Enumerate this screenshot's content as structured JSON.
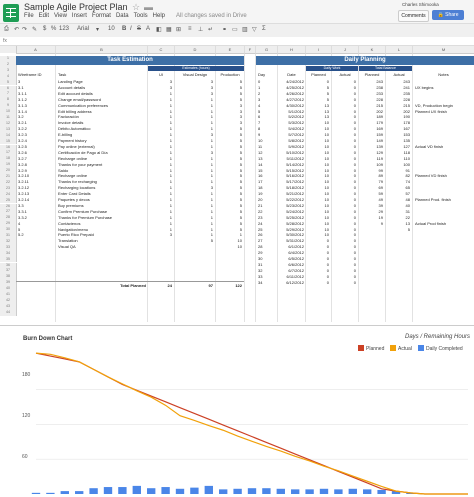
{
  "app": {
    "doc_title": "Sample Agile Project Plan",
    "menus": [
      "File",
      "Edit",
      "View",
      "Insert",
      "Format",
      "Data",
      "Tools",
      "Help"
    ],
    "save_status": "All changes saved in Drive",
    "user": "Charles Shimooka",
    "comments_label": "Comments",
    "share_label": "Share"
  },
  "toolbar": {
    "currency": "$",
    "percent": "%",
    "number_format": "123",
    "font": "Arial",
    "font_size": "10"
  },
  "columns": [
    "A",
    "B",
    "C",
    "D",
    "E",
    "F",
    "G",
    "H",
    "I",
    "J",
    "K",
    "L",
    "M"
  ],
  "task_estimation": {
    "title": "Task Estimation",
    "estimates_label": "Estimates (hours)",
    "headers": [
      "Wireframe ID",
      "Task",
      "UI",
      "Visual Design",
      "Production"
    ],
    "rows": [
      [
        "3",
        "Landing Page",
        "3",
        "3",
        "5"
      ],
      [
        "3.1",
        "Account details",
        "3",
        "3",
        "5"
      ],
      [
        "3.1.1",
        "Edit account details",
        "1",
        "3",
        "5"
      ],
      [
        "3.1.2",
        "Change email/password",
        "1",
        "1",
        "5"
      ],
      [
        "3.1.3",
        "Communication preferences",
        "1",
        "1",
        "3"
      ],
      [
        "3.1.4",
        "Edit billing address",
        "1",
        "1",
        "3"
      ],
      [
        "3.2",
        "Facturación",
        "1",
        "1",
        "3"
      ],
      [
        "3.2.1",
        "Invoice details",
        "1",
        "1",
        "3"
      ],
      [
        "3.2.2",
        "Débito Automático",
        "1",
        "1",
        "5"
      ],
      [
        "3.2.3",
        "E-billing",
        "1",
        "3",
        "5"
      ],
      [
        "3.2.4",
        "Payment history",
        "1",
        "1",
        "5"
      ],
      [
        "3.2.5",
        "Pay online (external)",
        "1",
        "1",
        "5"
      ],
      [
        "3.2.6",
        "Certificación de Pago al Día",
        "1",
        "3",
        "5"
      ],
      [
        "3.2.7",
        "Recharge online",
        "1",
        "1",
        "5"
      ],
      [
        "3.2.8",
        "Thanks for your payment",
        "1",
        "1",
        "5"
      ],
      [
        "3.2.9",
        "Saldo",
        "1",
        "1",
        "5"
      ],
      [
        "3.2.10",
        "Recharge online",
        "1",
        "1",
        "5"
      ],
      [
        "3.2.11",
        "Thanks for recharging",
        "1",
        "1",
        "5"
      ],
      [
        "3.2.12",
        "Recharging locations",
        "1",
        "3",
        "5"
      ],
      [
        "3.2.13",
        "Enter Card Details",
        "1",
        "1",
        "5"
      ],
      [
        "3.2.14",
        "Paquetes y decos",
        "1",
        "1",
        "5"
      ],
      [
        "3.3",
        "Buy premiums",
        "1",
        "1",
        "5"
      ],
      [
        "3.3.1",
        "Confirm Premium Purchase",
        "1",
        "1",
        "5"
      ],
      [
        "3.3.2",
        "Thanks for Premium Purchase",
        "1",
        "1",
        "5"
      ],
      [
        "4",
        "Contáctenos",
        "1",
        "1",
        "5"
      ],
      [
        "5",
        "Navigation/menu",
        "1",
        "1",
        "5"
      ],
      [
        "5.2",
        "Puerto Rico Prepaid",
        "3",
        "1",
        "1"
      ],
      [
        "",
        "Translation",
        "",
        "5",
        "10"
      ],
      [
        "",
        "Visual QA",
        "",
        "",
        "10"
      ]
    ],
    "total_label": "Total Planned",
    "totals": [
      "24",
      "97",
      "122"
    ]
  },
  "daily_planning": {
    "title": "Daily Planning",
    "daily_work_label": "Daily Work",
    "total_balance_label": "Total Balance",
    "headers": [
      "Day",
      "Date",
      "Planned",
      "Actual",
      "Planned",
      "Actual",
      "Notes"
    ],
    "rows": [
      [
        "0",
        "4/24/2012",
        "0",
        "0",
        "243",
        "243",
        ""
      ],
      [
        "1",
        "4/25/2012",
        "5",
        "0",
        "238",
        "241",
        "UX begins"
      ],
      [
        "2",
        "4/26/2012",
        "5",
        "0",
        "233",
        "235",
        ""
      ],
      [
        "3",
        "4/27/2012",
        "5",
        "0",
        "228",
        "228",
        ""
      ],
      [
        "4",
        "4/30/2012",
        "13",
        "0",
        "215",
        "215",
        "VD, Production begin"
      ],
      [
        "5",
        "5/1/2012",
        "13",
        "0",
        "202",
        "202",
        "Planned UX finish"
      ],
      [
        "6",
        "5/2/2012",
        "13",
        "0",
        "189",
        "190",
        ""
      ],
      [
        "7",
        "5/3/2012",
        "10",
        "0",
        "179",
        "178",
        ""
      ],
      [
        "8",
        "5/4/2012",
        "10",
        "0",
        "169",
        "167",
        ""
      ],
      [
        "9",
        "5/7/2012",
        "10",
        "0",
        "159",
        "153",
        ""
      ],
      [
        "10",
        "5/8/2012",
        "10",
        "0",
        "149",
        "135",
        ""
      ],
      [
        "11",
        "5/9/2012",
        "10",
        "0",
        "139",
        "127",
        "Actual VD finish"
      ],
      [
        "12",
        "5/10/2012",
        "10",
        "0",
        "129",
        "118",
        ""
      ],
      [
        "13",
        "5/11/2012",
        "10",
        "0",
        "119",
        "110",
        ""
      ],
      [
        "14",
        "5/14/2012",
        "10",
        "0",
        "109",
        "100",
        ""
      ],
      [
        "15",
        "5/15/2012",
        "10",
        "0",
        "99",
        "91",
        ""
      ],
      [
        "16",
        "5/16/2012",
        "10",
        "0",
        "89",
        "82",
        "Planned VD finish"
      ],
      [
        "17",
        "5/17/2012",
        "10",
        "0",
        "79",
        "74",
        ""
      ],
      [
        "18",
        "5/18/2012",
        "10",
        "0",
        "69",
        "65",
        ""
      ],
      [
        "19",
        "5/21/2012",
        "10",
        "0",
        "59",
        "57",
        ""
      ],
      [
        "20",
        "5/22/2012",
        "10",
        "0",
        "49",
        "48",
        "Planned Prod. finish"
      ],
      [
        "21",
        "5/23/2012",
        "10",
        "0",
        "39",
        "40",
        ""
      ],
      [
        "22",
        "5/24/2012",
        "10",
        "0",
        "29",
        "31",
        ""
      ],
      [
        "23",
        "5/25/2012",
        "10",
        "0",
        "19",
        "22",
        ""
      ],
      [
        "24",
        "5/28/2012",
        "10",
        "0",
        "9",
        "13",
        "Actual Prod finish"
      ],
      [
        "25",
        "5/29/2012",
        "10",
        "0",
        "",
        "5",
        ""
      ],
      [
        "26",
        "5/30/2012",
        "10",
        "0",
        "",
        "",
        ""
      ],
      [
        "27",
        "5/31/2012",
        "0",
        "0",
        "",
        "",
        ""
      ],
      [
        "28",
        "6/1/2012",
        "0",
        "0",
        "",
        "",
        ""
      ],
      [
        "29",
        "6/4/2012",
        "0",
        "0",
        "",
        "",
        ""
      ],
      [
        "30",
        "6/5/2012",
        "0",
        "0",
        "",
        "",
        ""
      ],
      [
        "31",
        "6/6/2012",
        "0",
        "0",
        "",
        "",
        ""
      ],
      [
        "32",
        "6/7/2012",
        "0",
        "0",
        "",
        "",
        ""
      ],
      [
        "33",
        "6/11/2012",
        "0",
        "0",
        "",
        "",
        ""
      ],
      [
        "34",
        "6/12/2012",
        "0",
        "0",
        "",
        "",
        ""
      ]
    ]
  },
  "chart_data": {
    "type": "line",
    "title": "Burn Down Chart",
    "subtitle": "Days / Remaining Hours",
    "ytick_labels": [
      "180",
      "120",
      "60"
    ],
    "ylim": [
      0,
      245
    ],
    "x": [
      0,
      1,
      2,
      3,
      4,
      5,
      6,
      7,
      8,
      9,
      10,
      11,
      12,
      13,
      14,
      15,
      16,
      17,
      18,
      19,
      20,
      21,
      22,
      23,
      24,
      25,
      26,
      27,
      28,
      29,
      30
    ],
    "legend_position": "top-right",
    "series": [
      {
        "name": "Planned",
        "color": "#cc4125",
        "values": [
          243,
          238,
          233,
          228,
          215,
          202,
          189,
          179,
          169,
          159,
          149,
          139,
          129,
          119,
          109,
          99,
          89,
          79,
          69,
          59,
          49,
          39,
          29,
          19,
          9,
          5,
          2,
          0,
          0,
          0,
          0
        ]
      },
      {
        "name": "Actual",
        "color": "#f1a10a",
        "values": [
          243,
          241,
          235,
          228,
          215,
          202,
          190,
          178,
          167,
          153,
          135,
          127,
          118,
          110,
          100,
          91,
          82,
          74,
          65,
          57,
          48,
          40,
          31,
          22,
          13,
          5,
          2,
          0,
          0,
          0,
          0
        ]
      }
    ],
    "bars": {
      "name": "Daily Completed",
      "color": "#4a86e8",
      "values": [
        2,
        2,
        5,
        5,
        10,
        12,
        12,
        14,
        10,
        12,
        9,
        11,
        14,
        8,
        9,
        10,
        10,
        9,
        8,
        8,
        9,
        8,
        9,
        8,
        7,
        5,
        2,
        0,
        0,
        0,
        0
      ]
    }
  }
}
